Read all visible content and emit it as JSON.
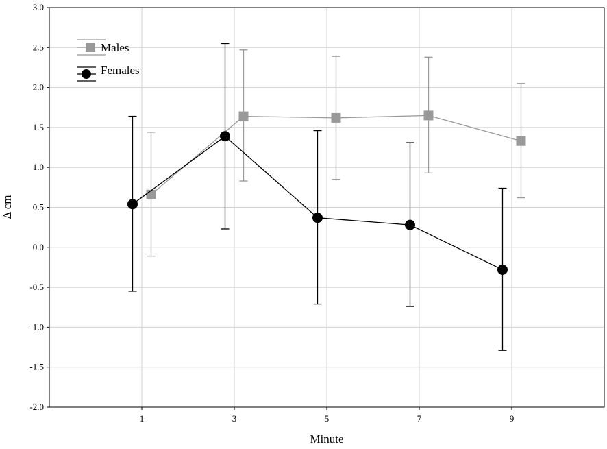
{
  "chart_data": {
    "type": "line",
    "xlabel": "Minute",
    "ylabel": "Δ cm",
    "x": [
      1,
      3,
      5,
      7,
      9
    ],
    "x_ticks": [
      "1",
      "3",
      "5",
      "7",
      "9"
    ],
    "xlim": [
      -1,
      11
    ],
    "ylim": [
      -2.0,
      3.0
    ],
    "y_ticks": [
      "-2.0",
      "-1.5",
      "-1.0",
      "-0.5",
      "0.0",
      "0.5",
      "1.0",
      "1.5",
      "2.0",
      "2.5",
      "3.0"
    ],
    "grid": true,
    "legend_position": "top-left",
    "series": [
      {
        "name": "Males",
        "color": "#999999",
        "marker": "square",
        "x": [
          1.2,
          3.2,
          5.2,
          7.2,
          9.2
        ],
        "values": [
          0.66,
          1.64,
          1.62,
          1.65,
          1.33
        ],
        "error_low": [
          -0.11,
          0.83,
          0.85,
          0.93,
          0.62
        ],
        "error_high": [
          1.44,
          2.47,
          2.39,
          2.38,
          2.05
        ]
      },
      {
        "name": "Females",
        "color": "#000000",
        "marker": "circle",
        "x": [
          0.8,
          2.8,
          4.8,
          6.8,
          8.8
        ],
        "values": [
          0.54,
          1.39,
          0.37,
          0.28,
          -0.28
        ],
        "error_low": [
          -0.55,
          0.23,
          -0.71,
          -0.74,
          -1.29
        ],
        "error_high": [
          1.64,
          2.55,
          1.46,
          1.31,
          0.74
        ]
      }
    ]
  }
}
